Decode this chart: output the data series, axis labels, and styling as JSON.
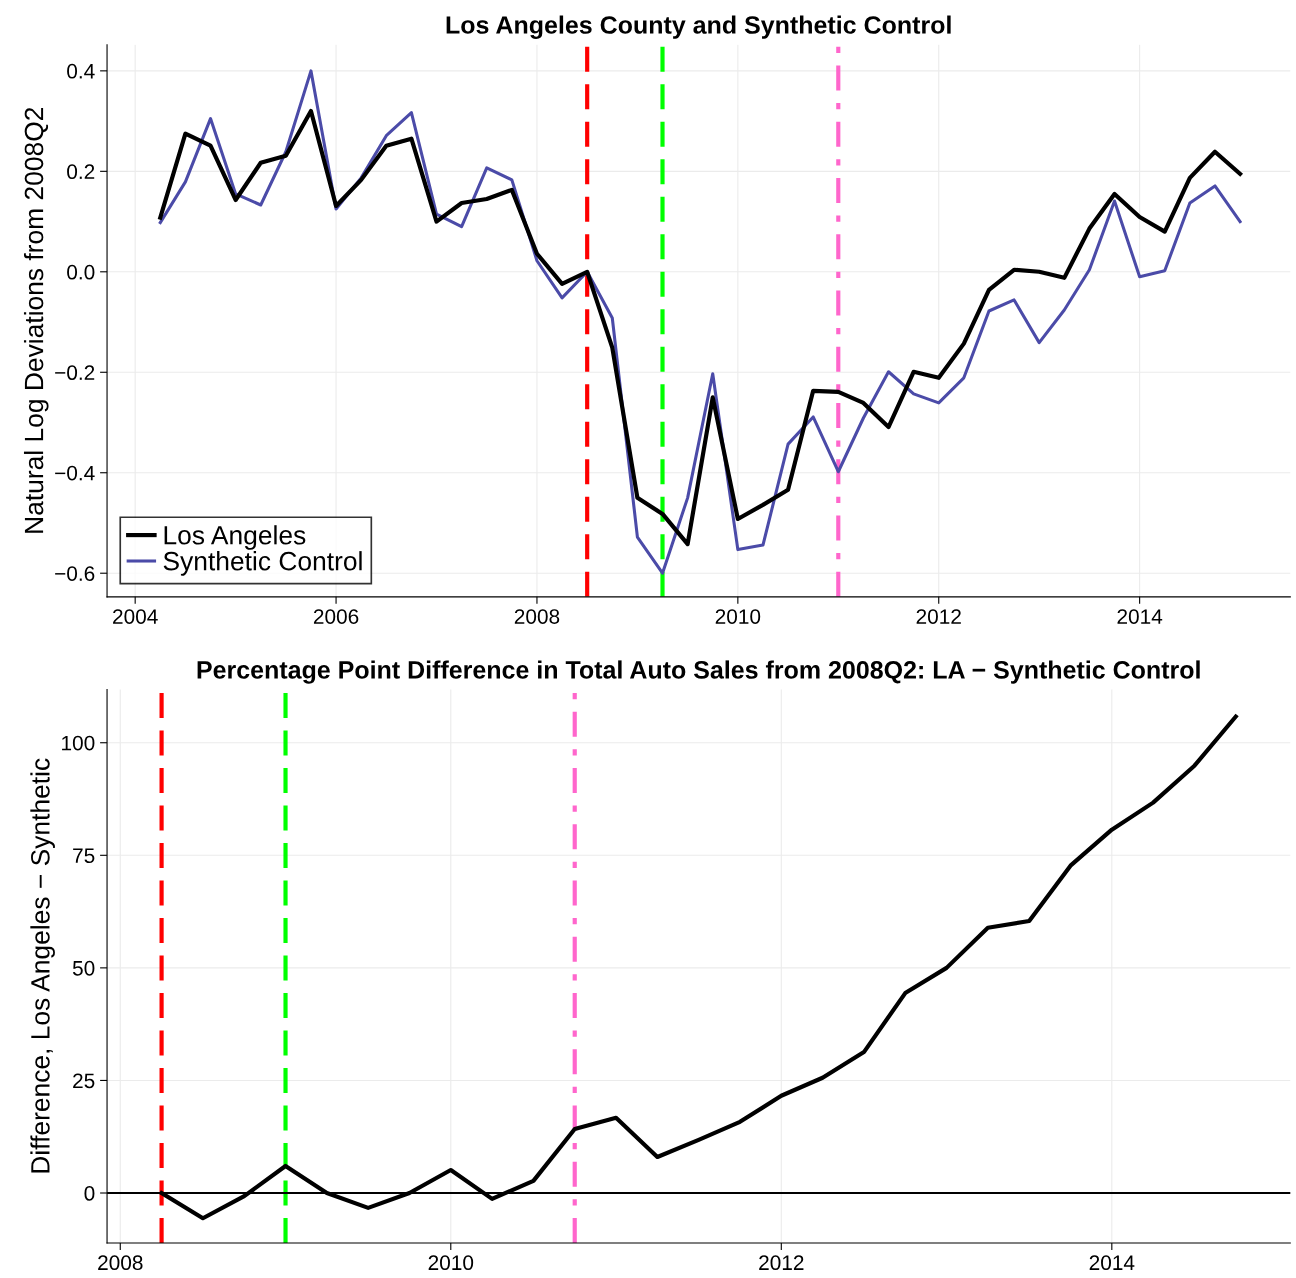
{
  "chart_data": [
    {
      "type": "line",
      "title": "Los Angeles County and Synthetic Control",
      "ylabel": "Natural Log Deviations from 2008Q2",
      "x": [
        2004.25,
        2004.5,
        2004.75,
        2005.0,
        2005.25,
        2005.5,
        2005.75,
        2006.0,
        2006.25,
        2006.5,
        2006.75,
        2007.0,
        2007.25,
        2007.5,
        2007.75,
        2008.0,
        2008.25,
        2008.5,
        2008.75,
        2009.0,
        2009.25,
        2009.5,
        2009.75,
        2010.0,
        2010.25,
        2010.5,
        2010.75,
        2011.0,
        2011.25,
        2011.5,
        2011.75,
        2012.0,
        2012.25,
        2012.5,
        2012.75,
        2013.0,
        2013.25,
        2013.5,
        2013.75,
        2014.0,
        2014.25,
        2014.5,
        2014.75,
        2015.0
      ],
      "series": [
        {
          "name": "Los Angeles",
          "color": "#000000",
          "values": [
            0.108,
            0.275,
            0.251,
            0.143,
            0.217,
            0.231,
            0.32,
            0.131,
            0.183,
            0.251,
            0.265,
            0.1,
            0.137,
            0.145,
            0.163,
            0.036,
            -0.024,
            0.0,
            -0.151,
            -0.45,
            -0.482,
            -0.542,
            -0.25,
            -0.492,
            -0.464,
            -0.434,
            -0.237,
            -0.239,
            -0.261,
            -0.309,
            -0.199,
            -0.211,
            -0.143,
            -0.036,
            0.004,
            0.0,
            -0.012,
            0.086,
            0.155,
            0.109,
            0.08,
            0.187,
            0.239,
            0.195
          ]
        },
        {
          "name": "Synthetic Control",
          "color": "#4b4ba8",
          "values": [
            0.098,
            0.179,
            0.305,
            0.155,
            0.133,
            0.239,
            0.4,
            0.125,
            0.187,
            0.271,
            0.317,
            0.115,
            0.09,
            0.207,
            0.183,
            0.022,
            -0.052,
            0.0,
            -0.092,
            -0.528,
            -0.6,
            -0.45,
            -0.203,
            -0.553,
            -0.544,
            -0.343,
            -0.289,
            -0.398,
            -0.291,
            -0.199,
            -0.243,
            -0.261,
            -0.211,
            -0.078,
            -0.056,
            -0.141,
            -0.076,
            0.004,
            0.141,
            -0.01,
            0.002,
            0.137,
            0.171,
            0.1
          ]
        }
      ],
      "xlim": [
        2003.72,
        2015.5
      ],
      "xticks": [
        2004,
        2006,
        2008,
        2010,
        2012,
        2014
      ],
      "ylim": [
        -0.647,
        0.452
      ],
      "yticks": [
        {
          "value": -0.6,
          "label": "−0.6"
        },
        {
          "value": -0.4,
          "label": "−0.4"
        },
        {
          "value": -0.2,
          "label": "−0.2"
        },
        {
          "value": 0,
          "label": "0.0"
        },
        {
          "value": 0.2,
          "label": "0.2"
        },
        {
          "value": 0.4,
          "label": "0.4"
        }
      ],
      "ref_lines": [
        {
          "axis": "x",
          "value": 2008.5,
          "color": "#ff0000",
          "line_style": "dashed"
        },
        {
          "axis": "x",
          "value": 2009.25,
          "color": "#00ff00",
          "line_style": "dashed"
        },
        {
          "axis": "x",
          "value": 2011.0,
          "color": "#ff66cc",
          "line_style": "dashdot"
        }
      ],
      "grid": true,
      "legend": "bottom left",
      "marker": "none",
      "line_style": "solid"
    },
    {
      "type": "line",
      "title": "Percentage Point Difference in Total Auto Sales from 2008Q2: LA − Synthetic Control",
      "ylabel": "Difference, Los Angeles − Synthetic",
      "x": [
        2008.25,
        2008.5,
        2008.75,
        2009.0,
        2009.25,
        2009.5,
        2009.75,
        2010.0,
        2010.25,
        2010.5,
        2010.75,
        2011.0,
        2011.25,
        2011.5,
        2011.75,
        2012.0,
        2012.25,
        2012.5,
        2012.75,
        2013.0,
        2013.25,
        2013.5,
        2013.75,
        2014.0,
        2014.25,
        2014.5,
        2014.75
      ],
      "series": [
        {
          "color": "#000000",
          "values": [
            0,
            -5.6,
            -0.7,
            6.0,
            0,
            -3.3,
            0,
            5.1,
            -1.3,
            2.7,
            14.2,
            16.7,
            8.0,
            11.8,
            15.8,
            21.6,
            25.6,
            31.3,
            44.4,
            50.0,
            58.9,
            60.4,
            72.7,
            80.7,
            86.7,
            94.9,
            105.8
          ]
        }
      ],
      "xlim": [
        2007.92,
        2015.08
      ],
      "xticks": [
        2008,
        2010,
        2012,
        2014
      ],
      "ylim": [
        -11.1,
        111.8
      ],
      "yticks": [
        0,
        25,
        50,
        75,
        100
      ],
      "ref_lines": [
        {
          "axis": "x",
          "value": 2008.25,
          "color": "#ff0000",
          "line_style": "dashed"
        },
        {
          "axis": "x",
          "value": 2009.0,
          "color": "#00ff00",
          "line_style": "dashed"
        },
        {
          "axis": "x",
          "value": 2010.75,
          "color": "#ff66cc",
          "line_style": "dashdot"
        },
        {
          "axis": "y",
          "value": 0,
          "color": "#000000",
          "line_style": "solid"
        }
      ],
      "grid": true,
      "marker": "none",
      "line_style": "solid"
    }
  ]
}
